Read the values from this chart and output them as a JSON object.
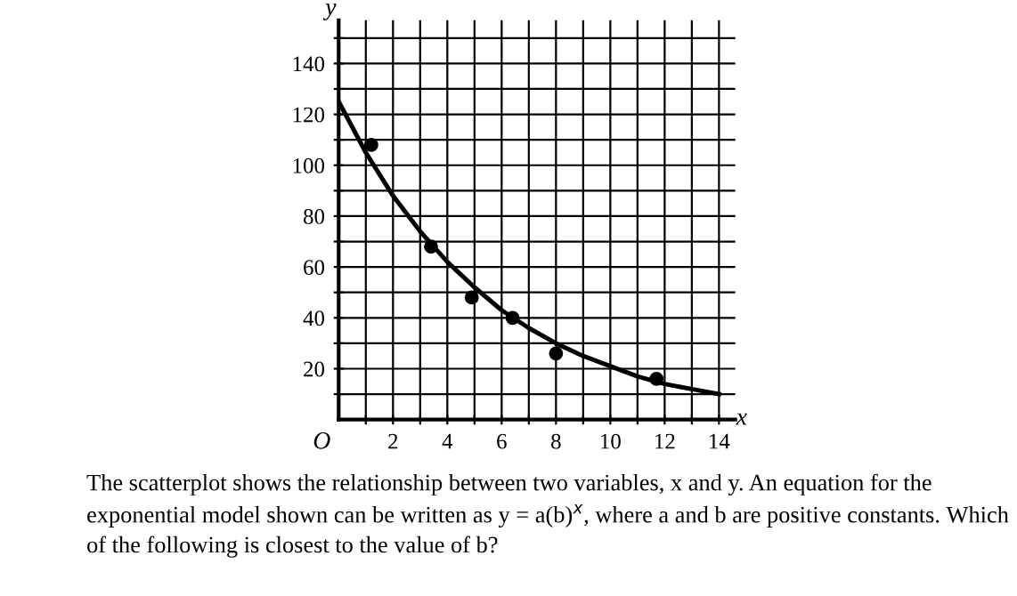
{
  "chart_data": {
    "type": "scatter",
    "xlabel": "x",
    "ylabel": "y",
    "series": [
      {
        "color": "#000000",
        "x": [
          1.2,
          3.4,
          4.9,
          6.4,
          8,
          11.7
        ],
        "values": [
          108,
          68,
          48,
          40,
          26,
          16
        ]
      },
      {
        "type": "line",
        "color": "#000000",
        "marker": "none",
        "x": [
          0,
          1,
          2,
          3,
          4,
          5,
          6,
          7,
          8,
          9,
          10,
          11,
          12,
          13,
          14
        ],
        "values": [
          125,
          105,
          88,
          74,
          62,
          52,
          43,
          36,
          30,
          25,
          21,
          17,
          14,
          12,
          10
        ]
      }
    ],
    "xlim": [
      0,
      14.6
    ],
    "ylim": [
      0,
      157
    ],
    "xticks": [
      {
        "value": 1,
        "label": null
      },
      2,
      {
        "value": 3,
        "label": null
      },
      4,
      {
        "value": 5,
        "label": null
      },
      6,
      {
        "value": 7,
        "label": null
      },
      8,
      {
        "value": 9,
        "label": null
      },
      10,
      {
        "value": 11,
        "label": null
      },
      12,
      {
        "value": 13,
        "label": null
      },
      14
    ],
    "yticks": [
      {
        "value": 10,
        "label": null
      },
      20,
      {
        "value": 30,
        "label": null
      },
      40,
      {
        "value": 50,
        "label": null
      },
      60,
      {
        "value": 70,
        "label": null
      },
      80,
      {
        "value": 90,
        "label": null
      },
      100,
      {
        "value": 110,
        "label": null
      },
      120,
      {
        "value": 130,
        "label": null
      },
      140,
      {
        "value": 150,
        "label": null
      }
    ],
    "grid": true,
    "marker": "circle",
    "annotations": [
      "O",
      "The scatterplot shows the relationship between two variables, x and y. An equation for the exponential model shown can be written as y = a(b)$^{x}$, where a and b are positive constants. Which of the following is closest to the value of b?"
    ]
  }
}
